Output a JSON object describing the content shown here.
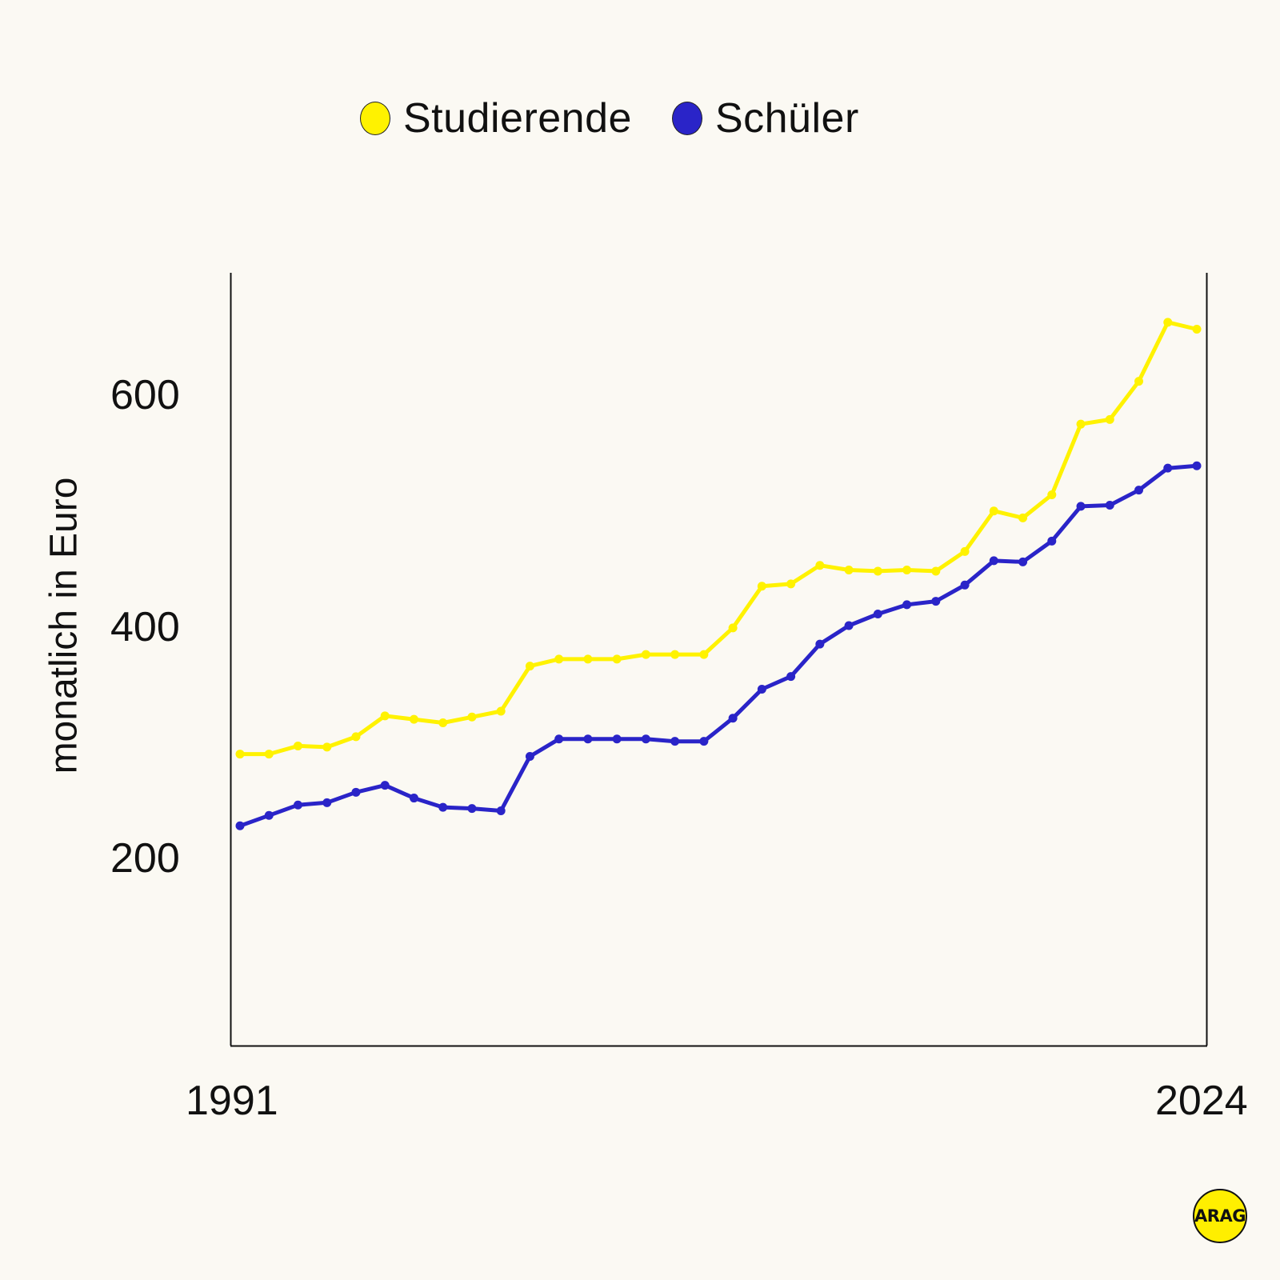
{
  "legend": {
    "items": [
      {
        "label": "Studierende",
        "color": "#fff200"
      },
      {
        "label": "Schüler",
        "color": "#2a24c8"
      }
    ]
  },
  "axes": {
    "ylabel": "monatlich in Euro",
    "yticks": [
      "600",
      "400",
      "200"
    ],
    "xticks": [
      "1991",
      "2024"
    ]
  },
  "logo": {
    "text": "ARAG"
  },
  "chart_data": {
    "type": "line",
    "title": "",
    "xlabel": "",
    "ylabel": "monatlich in Euro",
    "x": [
      1991,
      1992,
      1993,
      1994,
      1995,
      1996,
      1997,
      1998,
      1999,
      2000,
      2001,
      2002,
      2003,
      2004,
      2005,
      2006,
      2007,
      2008,
      2009,
      2010,
      2011,
      2012,
      2013,
      2014,
      2015,
      2016,
      2017,
      2018,
      2019,
      2020,
      2021,
      2022,
      2023,
      2024
    ],
    "xticks": [
      "1991",
      "2024"
    ],
    "yticks": [
      200,
      400,
      600
    ],
    "ylim": [
      38,
      705
    ],
    "grid": false,
    "legend_position": "top",
    "series": [
      {
        "name": "Studierende",
        "color": "#fff200",
        "values": [
          290,
          290,
          297,
          296,
          305,
          323,
          320,
          317,
          322,
          327,
          366,
          372,
          372,
          372,
          376,
          376,
          376,
          399,
          435,
          437,
          453,
          449,
          448,
          449,
          448,
          465,
          500,
          494,
          514,
          575,
          579,
          612,
          663,
          657
        ]
      },
      {
        "name": "Schüler",
        "color": "#2a24c8",
        "values": [
          228,
          237,
          246,
          248,
          257,
          263,
          252,
          244,
          243,
          241,
          288,
          303,
          303,
          303,
          303,
          301,
          301,
          321,
          346,
          357,
          385,
          401,
          411,
          419,
          422,
          436,
          457,
          456,
          474,
          504,
          505,
          518,
          537,
          539
        ]
      }
    ]
  }
}
